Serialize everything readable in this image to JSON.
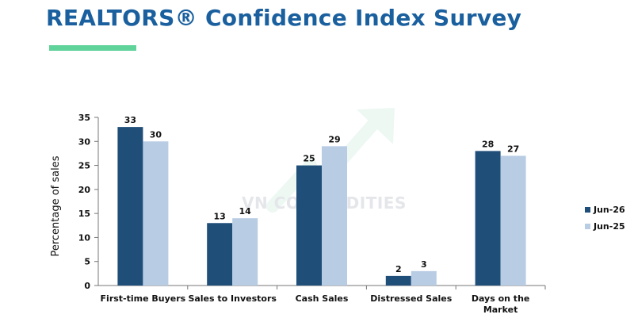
{
  "page": {
    "title": "REALTORS® Confidence Index Survey",
    "title_color": "#1a5f9e",
    "accent_rule_color": "#5fd39a",
    "watermark_text": "VN COMMODITIES"
  },
  "chart_data": {
    "type": "bar",
    "categories": [
      "First-time Buyers",
      "Sales to Investors",
      "Cash Sales",
      "Distressed Sales",
      "Days on the Market"
    ],
    "series": [
      {
        "name": "Jun-26",
        "values": [
          33,
          13,
          25,
          2,
          28
        ],
        "color": "#1f4e79"
      },
      {
        "name": "Jun-25",
        "values": [
          30,
          14,
          29,
          3,
          27
        ],
        "color": "#b8cce4"
      }
    ],
    "ylabel": "Percentage of sales",
    "xlabel": "",
    "ylim": [
      0,
      35
    ],
    "yticks": [
      "0",
      "5",
      "10",
      "15",
      "20",
      "25",
      "30",
      "35"
    ],
    "grid": false,
    "legend_position": "right"
  }
}
